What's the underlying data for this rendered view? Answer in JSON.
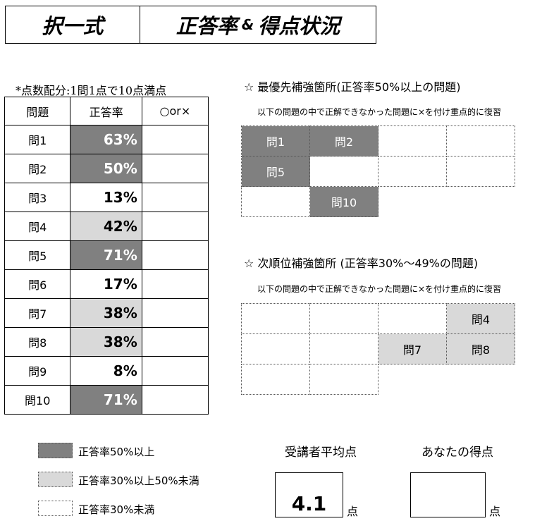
{
  "header": {
    "left_title": "択一式",
    "right_title_a": "正答率",
    "right_title_amp": "&",
    "right_title_b": "得点状況"
  },
  "note": "*点数配分:1問1点で10点満点",
  "table": {
    "headers": [
      "問題",
      "正答率",
      "○or×"
    ],
    "rows": [
      {
        "q": "問1",
        "rate": "63%",
        "level": "dk"
      },
      {
        "q": "問2",
        "rate": "50%",
        "level": "dk"
      },
      {
        "q": "問3",
        "rate": "13%",
        "level": "wt"
      },
      {
        "q": "問4",
        "rate": "42%",
        "level": "lt"
      },
      {
        "q": "問5",
        "rate": "71%",
        "level": "dk"
      },
      {
        "q": "問6",
        "rate": "17%",
        "level": "wt"
      },
      {
        "q": "問7",
        "rate": "38%",
        "level": "lt"
      },
      {
        "q": "問8",
        "rate": "38%",
        "level": "lt"
      },
      {
        "q": "問9",
        "rate": "8%",
        "level": "wt"
      },
      {
        "q": "問10",
        "rate": "71%",
        "level": "dk"
      }
    ]
  },
  "priority": {
    "title": "☆ 最優先補強箇所(正答率50%以上の問題)",
    "subtitle": "以下の問題の中で正解できなかった問題に×を付け重点的に復習",
    "grid": [
      [
        {
          "t": "問1",
          "c": "dk"
        },
        {
          "t": "問2",
          "c": "dk"
        },
        {
          "t": "",
          "c": ""
        },
        {
          "t": "",
          "c": ""
        }
      ],
      [
        {
          "t": "問5",
          "c": "dk"
        },
        {
          "t": "",
          "c": ""
        },
        {
          "t": "",
          "c": ""
        },
        {
          "t": "",
          "c": ""
        }
      ],
      [
        {
          "t": "",
          "c": ""
        },
        {
          "t": "問10",
          "c": "dk"
        }
      ]
    ]
  },
  "secondary": {
    "title": "☆ 次順位補強箇所 (正答率30%〜49%の問題)",
    "subtitle": "以下の問題の中で正解できなかった問題に×を付け重点的に復習",
    "grid": [
      [
        {
          "t": "",
          "c": ""
        },
        {
          "t": "",
          "c": ""
        },
        {
          "t": "",
          "c": ""
        },
        {
          "t": "問4",
          "c": "lt"
        }
      ],
      [
        {
          "t": "",
          "c": ""
        },
        {
          "t": "",
          "c": ""
        },
        {
          "t": "問7",
          "c": "lt"
        },
        {
          "t": "問8",
          "c": "lt"
        }
      ],
      [
        {
          "t": "",
          "c": ""
        },
        {
          "t": "",
          "c": ""
        }
      ]
    ]
  },
  "legend": [
    {
      "label": "正答率50%以上",
      "color": "#808080"
    },
    {
      "label": "正答率30%以上50%未満",
      "color": "#d9d9d9"
    },
    {
      "label": "正答率30%未満",
      "color": "#ffffff"
    }
  ],
  "scores": {
    "average_label": "受講者平均点",
    "average_value": "4.1",
    "average_unit": "点",
    "yours_label": "あなたの得点",
    "yours_value": "",
    "yours_unit": "点"
  }
}
